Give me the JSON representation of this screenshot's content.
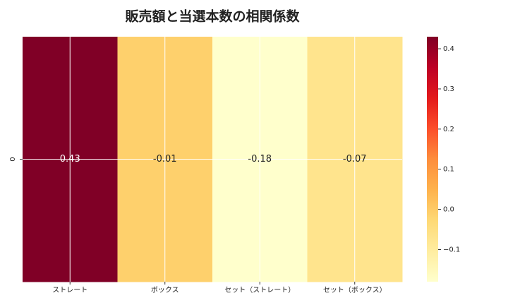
{
  "chart_data": {
    "type": "heatmap",
    "title": "販売額と当選本数の相関係数",
    "x_categories": [
      "ストレート",
      "ボックス",
      "セット（ストレート）",
      "セット（ボックス）"
    ],
    "y_categories": [
      "0"
    ],
    "values": [
      [
        0.43,
        -0.01,
        -0.18,
        -0.07
      ]
    ],
    "clim": [
      -0.18,
      0.43
    ],
    "cticks": [
      0.4,
      0.3,
      0.2,
      0.1,
      {
        "value": 0.0,
        "label": "0.0"
      },
      {
        "value": -0.1,
        "label": "−0.1"
      }
    ],
    "colormap": [
      "#ffffcc",
      "#ffeda0",
      "#fed976",
      "#feb24c",
      "#fd8d3c",
      "#fc4e2a",
      "#e31a1c",
      "#bd0026",
      "#800026"
    ],
    "grid": true
  }
}
